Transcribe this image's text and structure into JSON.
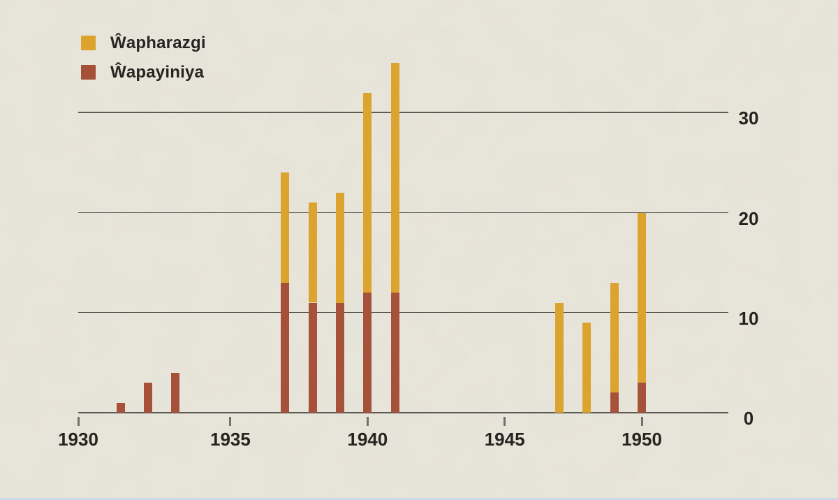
{
  "legend": {
    "items": [
      {
        "id": "wapharazgi",
        "label": "Ŵapharazgi",
        "color": "#E0A426"
      },
      {
        "id": "wapayiniya",
        "label": "Ŵapayiniya",
        "color": "#A64B33"
      }
    ]
  },
  "chart_data": {
    "type": "bar",
    "stacked": true,
    "title": "",
    "xlabel": "",
    "ylabel": "",
    "categories": [
      1931,
      1932,
      1933,
      1937,
      1938,
      1939,
      1940,
      1941,
      1947,
      1948,
      1949,
      1950
    ],
    "series": [
      {
        "name": "Ŵapayiniya",
        "key": "wapayiniya",
        "color": "#A64B33",
        "values": [
          1,
          3,
          4,
          13,
          11,
          11,
          12,
          12,
          0,
          0,
          2,
          3
        ]
      },
      {
        "name": "Ŵapharazgi",
        "key": "wapharazgi",
        "color": "#E0A426",
        "values": [
          0,
          0,
          0,
          11,
          10,
          11,
          20,
          23,
          11,
          9,
          11,
          17
        ]
      }
    ],
    "stacked_totals": [
      1,
      3,
      4,
      24,
      21,
      22,
      32,
      35,
      11,
      9,
      13,
      20
    ],
    "x_ticks": [
      1930,
      1935,
      1940,
      1945,
      1950
    ],
    "y_ticks": [
      0,
      10,
      20,
      30
    ],
    "xlim": [
      1929.45,
      1953.2
    ],
    "ylim": [
      0,
      35.2
    ],
    "grid": true,
    "y_axis_side": "right",
    "legend_position": "top-left",
    "colors": {
      "background": "#ECE9DF",
      "grid_line": "#56544E",
      "tick": "#6E6C66",
      "text": "#1B1A17",
      "bottom_edge": "#CDD9E6"
    }
  }
}
